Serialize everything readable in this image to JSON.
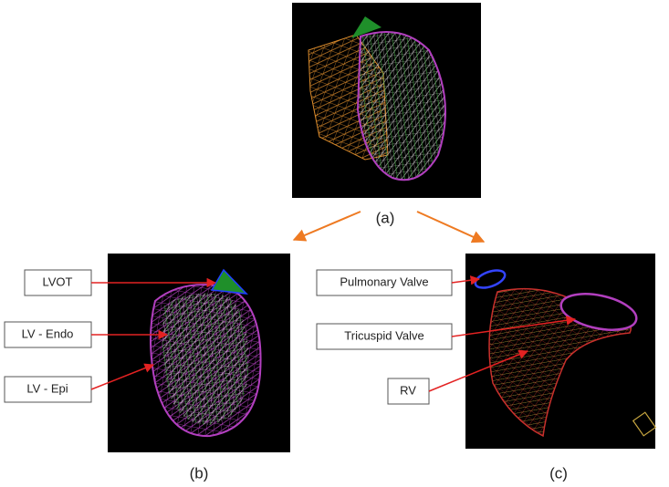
{
  "panels": [
    {
      "caption": "(a)"
    },
    {
      "caption": "(b)",
      "annotations": [
        "LVOT",
        "LV - Endo",
        "LV - Epi"
      ]
    },
    {
      "caption": "(c)",
      "annotations": [
        "Pulmonary Valve",
        "Tricuspid Valve",
        "RV"
      ]
    }
  ]
}
